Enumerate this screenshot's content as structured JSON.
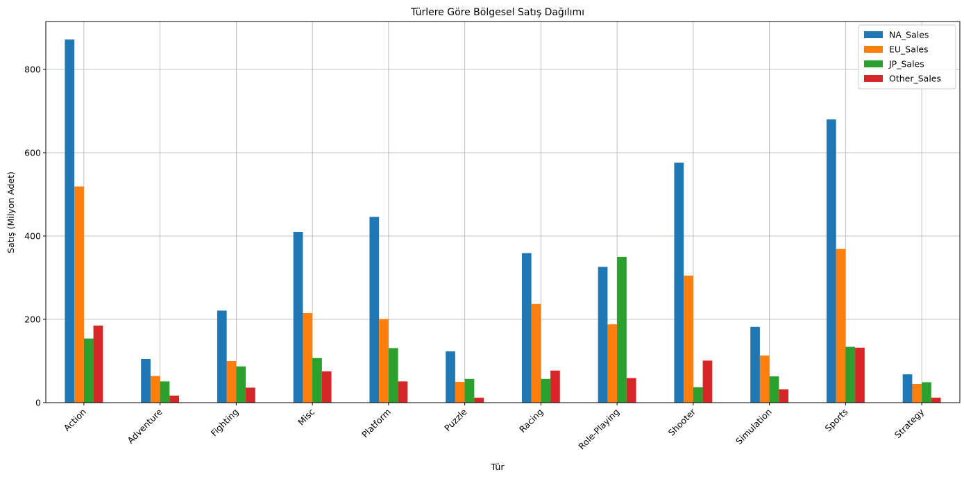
{
  "chart_data": {
    "type": "bar",
    "title": "Türlere Göre Bölgesel Satış Dağılımı",
    "xlabel": "Tür",
    "ylabel": "Satış (Milyon Adet)",
    "ylim": [
      0,
      915
    ],
    "yticks": [
      0,
      200,
      400,
      600,
      800
    ],
    "grid": true,
    "legend_position": "top-right",
    "categories": [
      "Action",
      "Adventure",
      "Fighting",
      "Misc",
      "Platform",
      "Puzzle",
      "Racing",
      "Role-Playing",
      "Shooter",
      "Simulation",
      "Sports",
      "Strategy"
    ],
    "series": [
      {
        "name": "NA_Sales",
        "color": "#1f77b4",
        "values": [
          872,
          105,
          221,
          410,
          446,
          123,
          359,
          326,
          576,
          182,
          680,
          68
        ]
      },
      {
        "name": "EU_Sales",
        "color": "#ff7f0e",
        "values": [
          519,
          64,
          100,
          215,
          201,
          50,
          237,
          188,
          305,
          113,
          369,
          45
        ]
      },
      {
        "name": "JP_Sales",
        "color": "#2ca02c",
        "values": [
          154,
          51,
          87,
          107,
          131,
          57,
          57,
          350,
          37,
          63,
          134,
          49
        ]
      },
      {
        "name": "Other_Sales",
        "color": "#d62728",
        "values": [
          185,
          17,
          36,
          75,
          51,
          12,
          77,
          59,
          101,
          32,
          132,
          12
        ]
      }
    ]
  }
}
